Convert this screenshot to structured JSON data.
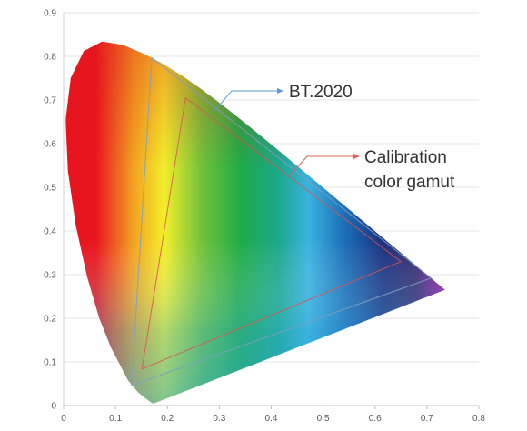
{
  "chart_data": {
    "type": "scatter",
    "title": "",
    "xlabel": "",
    "ylabel": "",
    "xlim": [
      0,
      0.8
    ],
    "ylim": [
      0,
      0.9
    ],
    "x_ticks": [
      0,
      0.1,
      0.2,
      0.3,
      0.4,
      0.5,
      0.6,
      0.7,
      0.8
    ],
    "y_ticks": [
      0,
      0.1,
      0.2,
      0.3,
      0.4,
      0.5,
      0.6,
      0.7,
      0.8,
      0.9
    ],
    "x_tick_labels": [
      "0",
      "0.1",
      "0.2",
      "0.3",
      "0.4",
      "0.5",
      "0.6",
      "0.7",
      "0.8"
    ],
    "y_tick_labels": [
      "0",
      "0.1",
      "0.2",
      "0.3",
      "0.4",
      "0.5",
      "0.6",
      "0.7",
      "0.8",
      "0.9"
    ],
    "grid": "horizontal",
    "legend": "none",
    "spectral_locus": [
      [
        0.1741,
        0.005
      ],
      [
        0.173,
        0.0048
      ],
      [
        0.1714,
        0.0051
      ],
      [
        0.1689,
        0.0069
      ],
      [
        0.1644,
        0.0109
      ],
      [
        0.1566,
        0.0177
      ],
      [
        0.144,
        0.0297
      ],
      [
        0.1241,
        0.0578
      ],
      [
        0.0913,
        0.1327
      ],
      [
        0.0687,
        0.2007
      ],
      [
        0.0454,
        0.295
      ],
      [
        0.0235,
        0.4127
      ],
      [
        0.0082,
        0.5384
      ],
      [
        0.0039,
        0.6548
      ],
      [
        0.0139,
        0.7502
      ],
      [
        0.0389,
        0.812
      ],
      [
        0.0743,
        0.8338
      ],
      [
        0.1142,
        0.8262
      ],
      [
        0.1547,
        0.8059
      ],
      [
        0.1929,
        0.7816
      ],
      [
        0.2296,
        0.7543
      ],
      [
        0.2658,
        0.7243
      ],
      [
        0.3016,
        0.6923
      ],
      [
        0.3373,
        0.6589
      ],
      [
        0.3731,
        0.6245
      ],
      [
        0.4087,
        0.5896
      ],
      [
        0.4441,
        0.5547
      ],
      [
        0.4788,
        0.5202
      ],
      [
        0.5125,
        0.4866
      ],
      [
        0.5448,
        0.4544
      ],
      [
        0.5752,
        0.4242
      ],
      [
        0.6029,
        0.3965
      ],
      [
        0.627,
        0.3725
      ],
      [
        0.6482,
        0.3514
      ],
      [
        0.6658,
        0.334
      ],
      [
        0.6801,
        0.3197
      ],
      [
        0.6915,
        0.3083
      ],
      [
        0.7006,
        0.2993
      ],
      [
        0.7079,
        0.292
      ],
      [
        0.714,
        0.2859
      ],
      [
        0.719,
        0.2809
      ],
      [
        0.723,
        0.277
      ],
      [
        0.726,
        0.274
      ],
      [
        0.7283,
        0.2717
      ],
      [
        0.73,
        0.27
      ],
      [
        0.7311,
        0.2689
      ],
      [
        0.732,
        0.268
      ],
      [
        0.7327,
        0.2673
      ],
      [
        0.7334,
        0.2666
      ],
      [
        0.734,
        0.266
      ],
      [
        0.7344,
        0.2656
      ],
      [
        0.7346,
        0.2654
      ],
      [
        0.7347,
        0.2653
      ]
    ],
    "series": [
      {
        "name": "BT.2020",
        "color": "#7f9fbf",
        "points": [
          [
            0.708,
            0.292
          ],
          [
            0.17,
            0.797
          ],
          [
            0.131,
            0.046
          ]
        ]
      },
      {
        "name": "Calibration color gamut",
        "color": "#d9534f",
        "points": [
          [
            0.65,
            0.33
          ],
          [
            0.235,
            0.705
          ],
          [
            0.151,
            0.084
          ]
        ]
      }
    ],
    "annotations": [
      {
        "text": "BT.2020",
        "color": "#5b9bd5",
        "lines": [
          "BT.2020"
        ]
      },
      {
        "text": "Calibration color gamut",
        "color": "#e0605a",
        "lines": [
          "Calibration",
          "color gamut"
        ]
      }
    ]
  }
}
